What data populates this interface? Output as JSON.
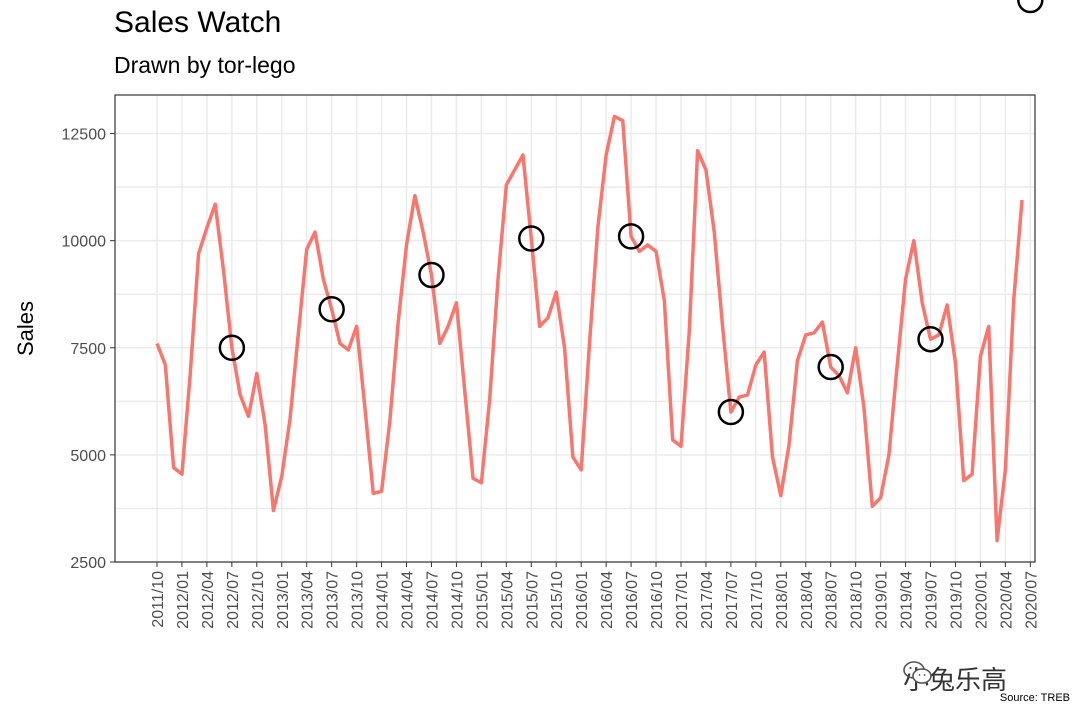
{
  "chart_data": {
    "type": "line",
    "title": "Sales Watch",
    "subtitle": "Drawn by tor-lego",
    "ylabel": "Sales",
    "xlabel": "",
    "ylim": [
      2500,
      13400
    ],
    "yticks": [
      2500,
      5000,
      7500,
      10000,
      12500
    ],
    "ytick_labels": [
      "2500",
      "5000",
      "7500",
      "10000",
      "12500"
    ],
    "xtick_labels": [
      "2011/10",
      "2012/01",
      "2012/04",
      "2012/07",
      "2012/10",
      "2013/01",
      "2013/04",
      "2013/07",
      "2013/10",
      "2014/01",
      "2014/04",
      "2014/07",
      "2014/10",
      "2015/01",
      "2015/04",
      "2015/07",
      "2015/10",
      "2016/01",
      "2016/04",
      "2016/07",
      "2016/10",
      "2017/01",
      "2017/04",
      "2017/07",
      "2017/10",
      "2018/01",
      "2018/04",
      "2018/07",
      "2018/10",
      "2019/01",
      "2019/04",
      "2019/07",
      "2019/10",
      "2020/01",
      "2020/04",
      "2020/07"
    ],
    "grid": true,
    "line_color": "#F8766D",
    "marker_color": "#000000",
    "x_start": "2011/10",
    "series": [
      {
        "values": [
          7600,
          7100,
          4700,
          4550,
          6900,
          9700,
          10300,
          10850,
          9300,
          7500,
          6400,
          5900,
          6900,
          5700,
          3700,
          4500,
          5850,
          7850,
          9800,
          10200,
          9100,
          8400,
          7600,
          7450,
          8000,
          6100,
          4100,
          4150,
          5800,
          8100,
          9900,
          11050,
          10200,
          9200,
          7600,
          8000,
          8550,
          6500,
          4450,
          4350,
          6300,
          9100,
          11300,
          11650,
          12000,
          10050,
          8000,
          8200,
          8800,
          7500,
          4950,
          4650,
          7600,
          10300,
          12000,
          12900,
          12800,
          10100,
          9750,
          9900,
          9750,
          8600,
          5350,
          5200,
          7900,
          12100,
          11650,
          10200,
          8000,
          6000,
          6350,
          6400,
          7100,
          7400,
          4950,
          4050,
          5250,
          7200,
          7800,
          7850,
          8100,
          7050,
          6850,
          6450,
          7500,
          6100,
          3800,
          4000,
          5000,
          7100,
          9100,
          10000,
          8550,
          7700,
          7800,
          8500,
          7150,
          4400,
          4550,
          7300,
          8000,
          3000,
          4650,
          8600,
          10950
        ],
        "circled_months": [
          "2012/07",
          "2013/07",
          "2014/07",
          "2015/07",
          "2016/07",
          "2017/07",
          "2018/07",
          "2019/07",
          "2020/07"
        ]
      }
    ]
  },
  "watermark": {
    "text": "小兔乐高",
    "icon": "wechat-icon"
  },
  "source": "Source: TREB"
}
